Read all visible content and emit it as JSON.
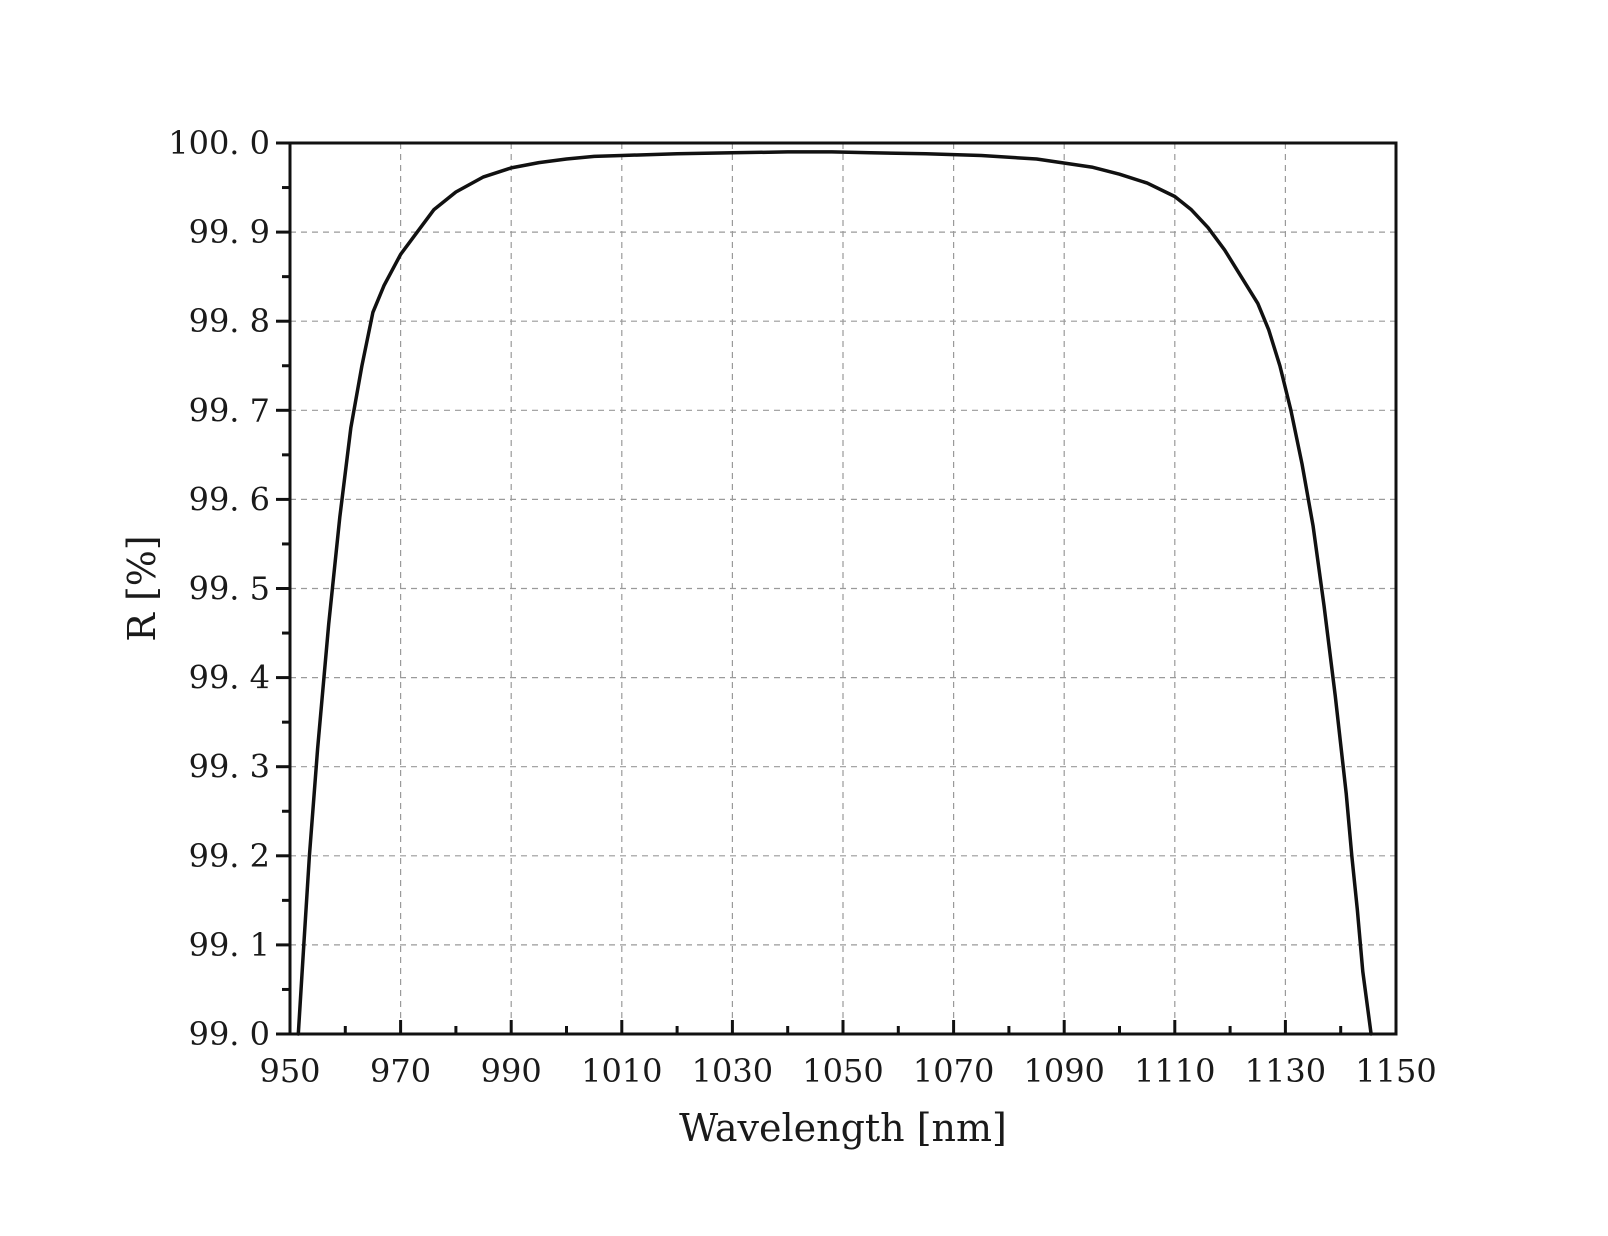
{
  "chart_data": {
    "type": "line",
    "xlabel": "Wavelength [nm]",
    "ylabel": "R [%]",
    "xlim": [
      950,
      1150
    ],
    "ylim": [
      99.0,
      100.0
    ],
    "x_ticks": [
      950,
      970,
      990,
      1010,
      1030,
      1050,
      1070,
      1090,
      1110,
      1130,
      1150
    ],
    "x_tick_labels": [
      "950",
      "970",
      "990",
      "1010",
      "1030",
      "1050",
      "1070",
      "1090",
      "1110",
      "1130",
      "1150"
    ],
    "y_ticks": [
      99.0,
      99.1,
      99.2,
      99.3,
      99.4,
      99.5,
      99.6,
      99.7,
      99.8,
      99.9,
      100.0
    ],
    "y_tick_labels": [
      "99. 0",
      "99. 1",
      "99. 2",
      "99. 3",
      "99. 4",
      "99. 5",
      "99. 6",
      "99. 7",
      "99. 8",
      "99. 9",
      "100. 0"
    ],
    "grid": true,
    "legend": "none",
    "line_color": "#111111",
    "series": [
      {
        "x": [
          951.5,
          952.5,
          953.5,
          955,
          957,
          959,
          961,
          963,
          965,
          967,
          970,
          973,
          976,
          980,
          985,
          990,
          995,
          1000,
          1005,
          1010,
          1020,
          1030,
          1040,
          1048,
          1055,
          1065,
          1075,
          1085,
          1095,
          1100,
          1105,
          1110,
          1113,
          1116,
          1119,
          1122,
          1125,
          1127,
          1129,
          1131,
          1133,
          1135,
          1137,
          1139,
          1141,
          1142,
          1143,
          1144,
          1145.5
        ],
        "y": [
          99.0,
          99.1,
          99.2,
          99.32,
          99.46,
          99.58,
          99.68,
          99.75,
          99.81,
          99.84,
          99.875,
          99.9,
          99.925,
          99.945,
          99.962,
          99.972,
          99.978,
          99.982,
          99.985,
          99.986,
          99.988,
          99.989,
          99.99,
          99.99,
          99.989,
          99.988,
          99.986,
          99.982,
          99.973,
          99.965,
          99.955,
          99.94,
          99.925,
          99.905,
          99.88,
          99.85,
          99.82,
          99.79,
          99.75,
          99.7,
          99.64,
          99.57,
          99.48,
          99.38,
          99.27,
          99.2,
          99.14,
          99.07,
          99.0
        ]
      }
    ]
  }
}
